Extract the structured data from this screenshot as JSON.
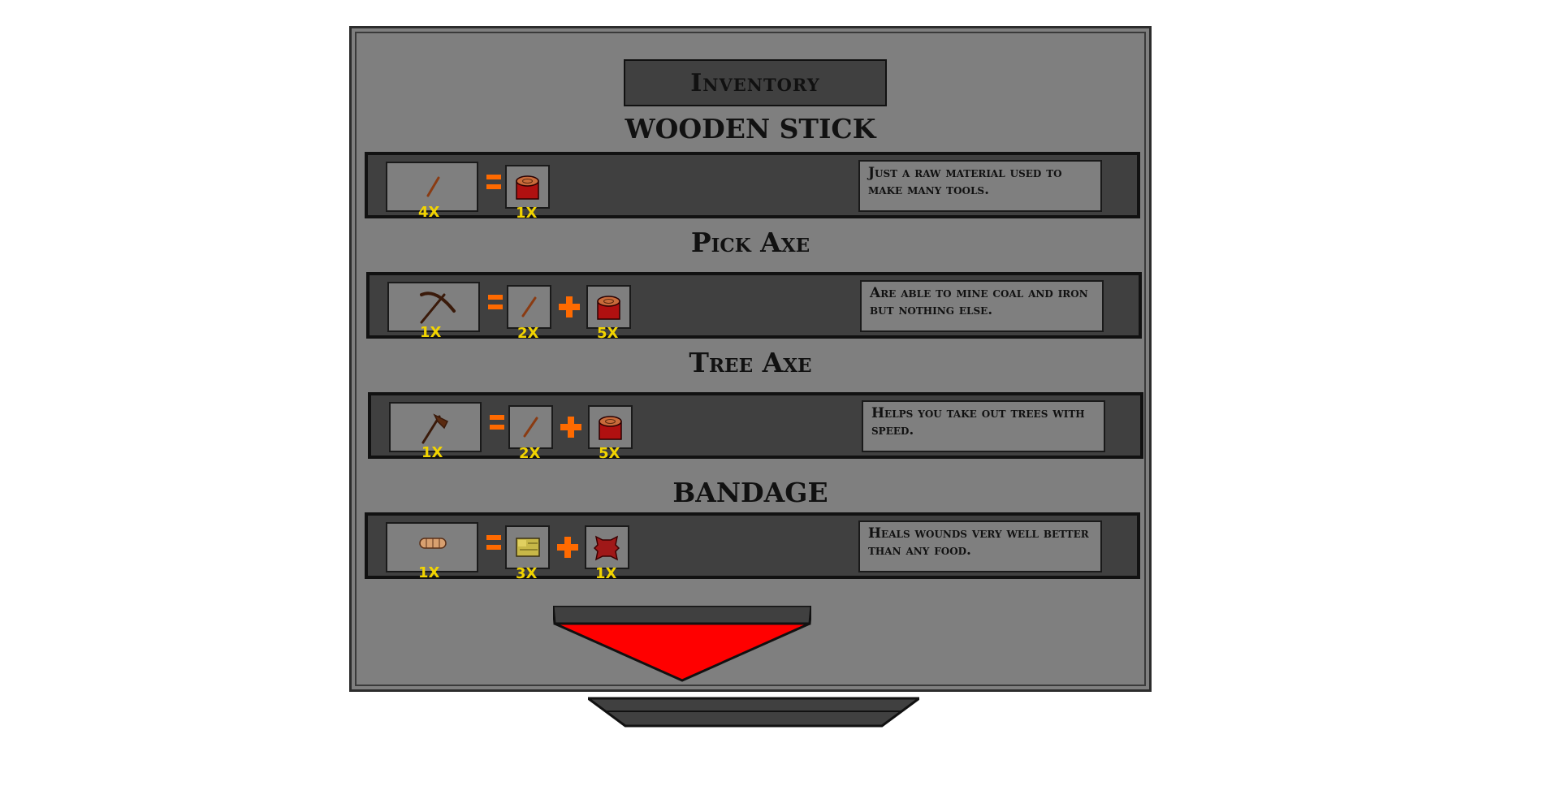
{
  "inventory": {
    "title": "Inventory",
    "recipes": [
      {
        "heading": "WOODEN STICK",
        "result": {
          "icon": "stick-icon",
          "qty": "4X"
        },
        "ingredients": [
          {
            "icon": "log-icon",
            "qty": "1X"
          }
        ],
        "description": "Just a raw material used to make many tools."
      },
      {
        "heading": "Pick Axe",
        "result": {
          "icon": "pickaxe-icon",
          "qty": "1X"
        },
        "ingredients": [
          {
            "icon": "stick-icon",
            "qty": "2X"
          },
          {
            "icon": "log-icon",
            "qty": "5X"
          }
        ],
        "description": "Are able to mine coal and iron but nothing else."
      },
      {
        "heading": "Tree Axe",
        "result": {
          "icon": "axe-icon",
          "qty": "1X"
        },
        "ingredients": [
          {
            "icon": "stick-icon",
            "qty": "2X"
          },
          {
            "icon": "log-icon",
            "qty": "5X"
          }
        ],
        "description": "Helps you take out trees with speed."
      },
      {
        "heading": "BANDAGE",
        "result": {
          "icon": "bandage-icon",
          "qty": "1X"
        },
        "ingredients": [
          {
            "icon": "cloth-icon",
            "qty": "3X"
          },
          {
            "icon": "hide-icon",
            "qty": "1X"
          }
        ],
        "description": "Heals wounds very well better than any food."
      }
    ]
  },
  "colors": {
    "panel": "#7f7f7f",
    "row": "#404040",
    "operator": "#ff6a00",
    "quantity": "#f2d400",
    "arrow": "#ff0000"
  },
  "controls": {
    "scroll_down_icon": "triangle-down-icon"
  }
}
